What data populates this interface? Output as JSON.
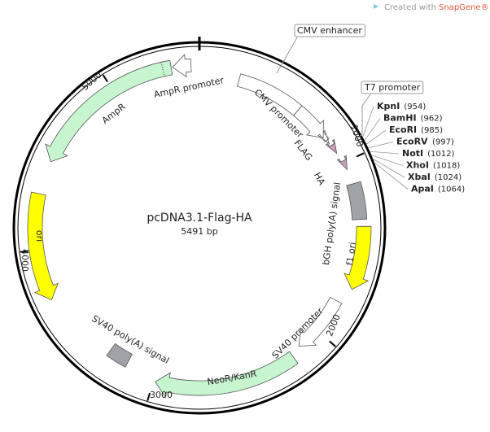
{
  "watermark": {
    "prefix": "Created with",
    "brand": "SnapGene®"
  },
  "plasmid": {
    "name": "pcDNA3.1-Flag-HA",
    "length": "5491 bp"
  },
  "ticks": [
    "1000",
    "2000",
    "3000",
    "4000",
    "5000"
  ],
  "features": [
    {
      "label": "CMV enhancer"
    },
    {
      "label": "CMV promoter"
    },
    {
      "label": "T7 promoter"
    },
    {
      "label": "FLAG"
    },
    {
      "label": "HA"
    },
    {
      "label": "bGH poly(A) signal"
    },
    {
      "label": "f1 ori"
    },
    {
      "label": "SV40 promoter"
    },
    {
      "label": "NeoR/KanR"
    },
    {
      "label": "SV40 poly(A) signal"
    },
    {
      "label": "ori"
    },
    {
      "label": "AmpR"
    },
    {
      "label": "AmpR promoter"
    }
  ],
  "sites": [
    {
      "name": "KpnI",
      "position": "(954)"
    },
    {
      "name": "BamHI",
      "position": "(962)"
    },
    {
      "name": "EcoRI",
      "position": "(985)"
    },
    {
      "name": "EcoRV",
      "position": "(997)"
    },
    {
      "name": "NotI",
      "position": "(1012)"
    },
    {
      "name": "XhoI",
      "position": "(1018)"
    },
    {
      "name": "XbaI",
      "position": "(1024)"
    },
    {
      "name": "ApaI",
      "position": "(1064)"
    }
  ]
}
